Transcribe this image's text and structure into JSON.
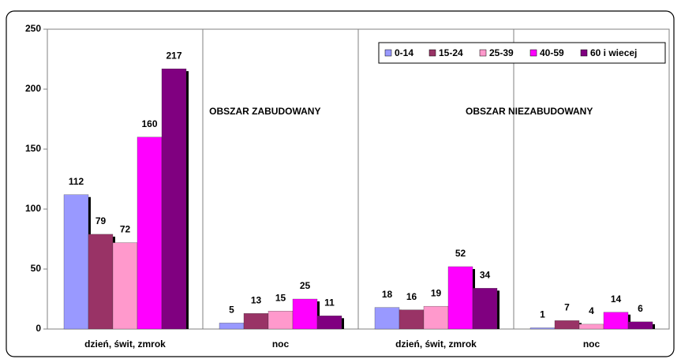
{
  "chart_data": {
    "type": "bar",
    "categories": [
      "dzień, świt, zmrok",
      "noc",
      "dzień, świt, zmrok",
      "noc"
    ],
    "series": [
      {
        "name": "0-14",
        "color": "#9999ff",
        "values": [
          112,
          5,
          18,
          1
        ]
      },
      {
        "name": "15-24",
        "color": "#993366",
        "values": [
          79,
          13,
          16,
          7
        ]
      },
      {
        "name": "25-39",
        "color": "#ff99cc",
        "values": [
          72,
          15,
          19,
          4
        ]
      },
      {
        "name": "40-59",
        "color": "#ff00ff",
        "values": [
          160,
          25,
          52,
          14
        ]
      },
      {
        "name": "60 i wiecej",
        "color": "#800080",
        "values": [
          217,
          11,
          34,
          6
        ]
      }
    ],
    "annotations": [
      "OBSZAR ZABUDOWANY",
      "OBSZAR NIEZABUDOWANY"
    ],
    "ylim": [
      0,
      250
    ],
    "yticks": [
      0,
      50,
      100,
      150,
      200,
      250
    ],
    "legend": "top-right"
  }
}
